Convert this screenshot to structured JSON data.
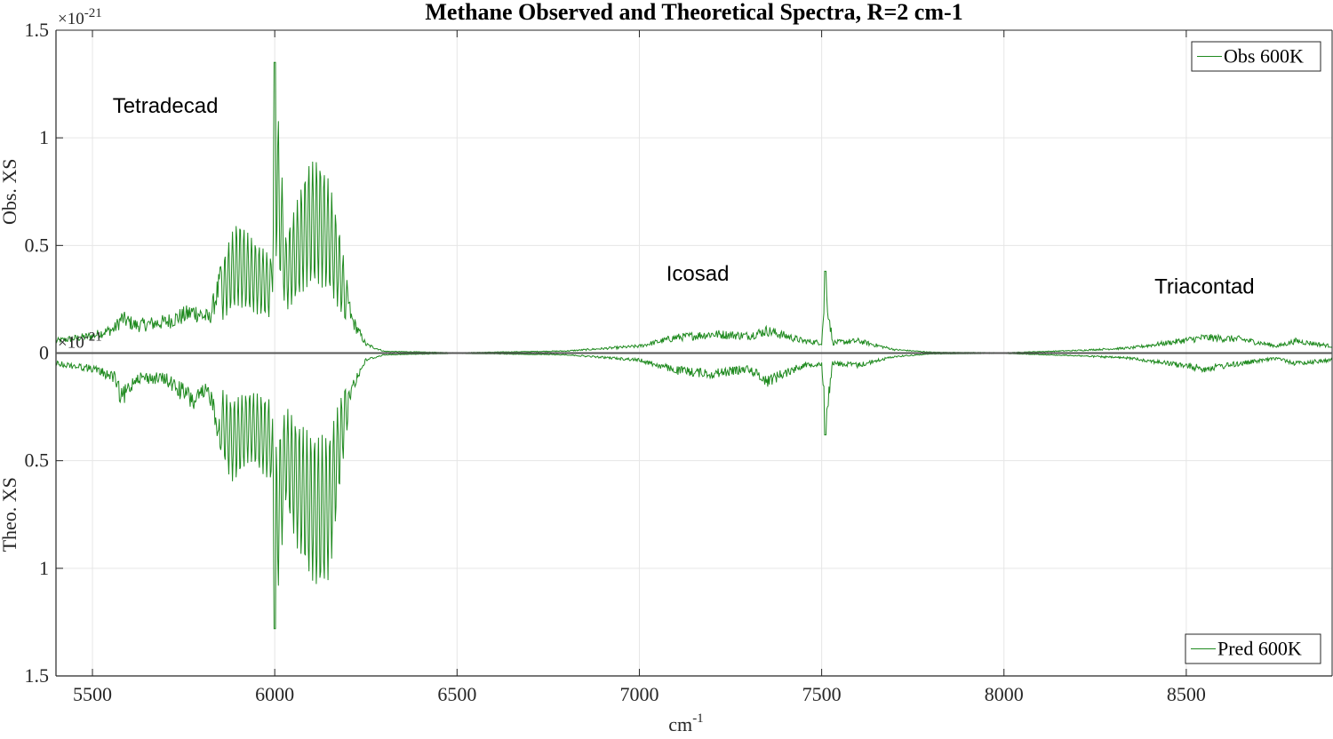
{
  "chart_data": {
    "type": "line",
    "title": "Methane Observed and Theoretical Spectra, R=2 cm-1",
    "xlabel": "cm",
    "xlabel_superscript": "-1",
    "xlim": [
      5400,
      8900
    ],
    "x_ticks": [
      5500,
      6000,
      6500,
      7000,
      7500,
      8000,
      8500
    ],
    "grid": true,
    "top_panel": {
      "ylabel": "Obs. XS",
      "ylim": [
        0,
        1.5
      ],
      "y_ticks": [
        "0",
        "0.5",
        "1",
        "1.5"
      ],
      "exponent_base": "×10",
      "exponent_power": "-21",
      "legend": "Obs 600K",
      "legend_position": "top-right"
    },
    "bottom_panel": {
      "ylabel": "Theo. XS",
      "ylim": [
        0,
        1.5
      ],
      "y_axis_reversed": true,
      "y_ticks": [
        "0.5",
        "1",
        "1.5"
      ],
      "exponent_base": "×10",
      "exponent_power": "-21",
      "legend": "Pred 600K",
      "legend_position": "bottom-right"
    },
    "annotations": [
      {
        "text": "Tetradecad",
        "x": 5700,
        "y": 1.15
      },
      {
        "text": "Icosad",
        "x": 7160,
        "y": 0.37
      },
      {
        "text": "Triacontad",
        "x": 8550,
        "y": 0.31
      }
    ],
    "series": [
      {
        "name": "Obs 600K",
        "panel": "top",
        "color": "#1f8a1f",
        "envelope": [
          [
            5400,
            0.07
          ],
          [
            5500,
            0.1
          ],
          [
            5560,
            0.14
          ],
          [
            5580,
            0.2
          ],
          [
            5620,
            0.16
          ],
          [
            5700,
            0.18
          ],
          [
            5780,
            0.24
          ],
          [
            5820,
            0.2
          ],
          [
            5850,
            0.4
          ],
          [
            5880,
            0.55
          ],
          [
            5900,
            0.62
          ],
          [
            5930,
            0.55
          ],
          [
            5960,
            0.5
          ],
          [
            5990,
            0.45
          ],
          [
            6000,
            1.35
          ],
          [
            6030,
            0.55
          ],
          [
            6060,
            0.7
          ],
          [
            6090,
            0.88
          ],
          [
            6120,
            0.9
          ],
          [
            6150,
            0.8
          ],
          [
            6180,
            0.55
          ],
          [
            6210,
            0.2
          ],
          [
            6250,
            0.05
          ],
          [
            6300,
            0.01
          ],
          [
            6500,
            0.002
          ],
          [
            6800,
            0.012
          ],
          [
            7000,
            0.04
          ],
          [
            7100,
            0.09
          ],
          [
            7200,
            0.11
          ],
          [
            7300,
            0.1
          ],
          [
            7350,
            0.13
          ],
          [
            7450,
            0.07
          ],
          [
            7500,
            0.06
          ],
          [
            7510,
            0.38
          ],
          [
            7530,
            0.06
          ],
          [
            7600,
            0.07
          ],
          [
            7700,
            0.02
          ],
          [
            7800,
            0.005
          ],
          [
            8000,
            0.002
          ],
          [
            8200,
            0.015
          ],
          [
            8350,
            0.03
          ],
          [
            8450,
            0.06
          ],
          [
            8550,
            0.09
          ],
          [
            8650,
            0.08
          ],
          [
            8750,
            0.04
          ],
          [
            8800,
            0.07
          ],
          [
            8900,
            0.04
          ]
        ]
      },
      {
        "name": "Pred 600K",
        "panel": "bottom",
        "color": "#1f8a1f",
        "envelope": [
          [
            5400,
            0.06
          ],
          [
            5500,
            0.09
          ],
          [
            5560,
            0.14
          ],
          [
            5580,
            0.27
          ],
          [
            5620,
            0.14
          ],
          [
            5700,
            0.15
          ],
          [
            5780,
            0.28
          ],
          [
            5820,
            0.22
          ],
          [
            5850,
            0.45
          ],
          [
            5880,
            0.6
          ],
          [
            5900,
            0.58
          ],
          [
            5930,
            0.5
          ],
          [
            5960,
            0.55
          ],
          [
            5990,
            0.6
          ],
          [
            6000,
            1.28
          ],
          [
            6030,
            0.7
          ],
          [
            6060,
            0.9
          ],
          [
            6090,
            1.02
          ],
          [
            6120,
            1.1
          ],
          [
            6150,
            1.05
          ],
          [
            6180,
            0.6
          ],
          [
            6210,
            0.2
          ],
          [
            6250,
            0.04
          ],
          [
            6300,
            0.01
          ],
          [
            6500,
            0.002
          ],
          [
            6800,
            0.01
          ],
          [
            7000,
            0.04
          ],
          [
            7100,
            0.1
          ],
          [
            7200,
            0.12
          ],
          [
            7300,
            0.09
          ],
          [
            7350,
            0.16
          ],
          [
            7450,
            0.07
          ],
          [
            7500,
            0.06
          ],
          [
            7510,
            0.38
          ],
          [
            7530,
            0.06
          ],
          [
            7600,
            0.07
          ],
          [
            7700,
            0.02
          ],
          [
            7800,
            0.005
          ],
          [
            8000,
            0.002
          ],
          [
            8200,
            0.015
          ],
          [
            8350,
            0.03
          ],
          [
            8450,
            0.06
          ],
          [
            8550,
            0.09
          ],
          [
            8650,
            0.06
          ],
          [
            8750,
            0.03
          ],
          [
            8800,
            0.06
          ],
          [
            8900,
            0.04
          ]
        ]
      }
    ]
  },
  "colors": {
    "series": "#1f8a1f",
    "axis": "#262626",
    "grid": "#e6e6e6",
    "zero_line": "#555555"
  }
}
